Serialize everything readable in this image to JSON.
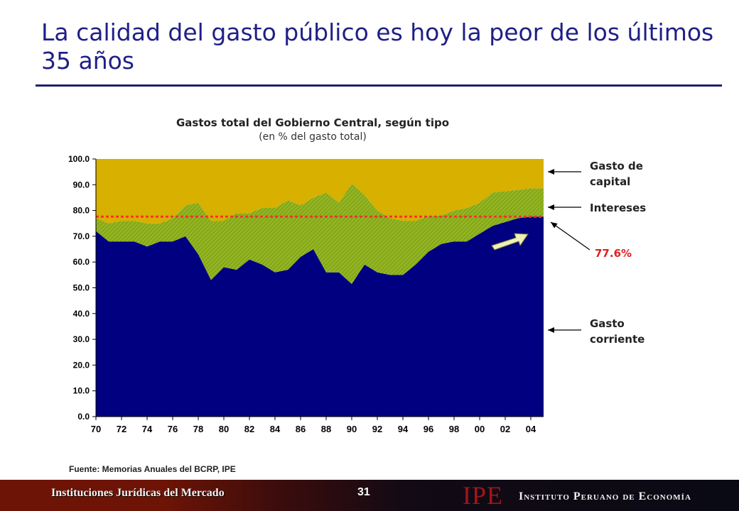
{
  "slide": {
    "title": "La calidad del gasto público es hoy la peor de los últimos 35 años"
  },
  "chart_data": {
    "type": "area",
    "title": "Gastos total del Gobierno Central, según tipo",
    "subtitle": "(en % del gasto total)",
    "x": [
      1970,
      1971,
      1972,
      1973,
      1974,
      1975,
      1976,
      1977,
      1978,
      1979,
      1980,
      1981,
      1982,
      1983,
      1984,
      1985,
      1986,
      1987,
      1988,
      1989,
      1990,
      1991,
      1992,
      1993,
      1994,
      1995,
      1996,
      1997,
      1998,
      1999,
      2000,
      2001,
      2002,
      2003,
      2004,
      2005
    ],
    "x_tick_labels": [
      "70",
      "72",
      "74",
      "76",
      "78",
      "80",
      "82",
      "84",
      "86",
      "88",
      "90",
      "92",
      "94",
      "96",
      "98",
      "00",
      "02",
      "04"
    ],
    "y_tick_labels": [
      "0.0",
      "10.0",
      "20.0",
      "30.0",
      "40.0",
      "50.0",
      "60.0",
      "70.0",
      "80.0",
      "90.0",
      "100.0"
    ],
    "ylim": [
      0,
      100
    ],
    "stacked": true,
    "series": [
      {
        "name": "Gasto corriente",
        "color": "#000080",
        "values": [
          72,
          68,
          68,
          68,
          66,
          68,
          68,
          70,
          63,
          53,
          58,
          57,
          61,
          59,
          56,
          57,
          62,
          65,
          56,
          56,
          51.5,
          59,
          56,
          55,
          55,
          59,
          64,
          67,
          68,
          68,
          71,
          74,
          75.5,
          77,
          77.6,
          77.6
        ]
      },
      {
        "name": "Intereses",
        "color": "#93b522",
        "values": [
          5,
          7,
          8,
          8,
          9,
          7,
          9,
          12,
          20,
          23,
          18,
          22,
          18,
          22,
          25,
          27,
          20,
          20,
          31,
          27,
          39,
          27,
          24,
          22,
          21,
          17,
          14,
          11,
          12,
          13,
          12,
          13,
          12,
          11,
          11,
          11
        ]
      },
      {
        "name": "Gasto de capital",
        "color": "#d8b000",
        "values": [
          23,
          25,
          24,
          24,
          25,
          25,
          23,
          18,
          17,
          24,
          24,
          21,
          21,
          19,
          19,
          16,
          18,
          15,
          13,
          17,
          9.5,
          14,
          20,
          23,
          24,
          24,
          22,
          22,
          20,
          19,
          17,
          13,
          12.5,
          12,
          11.4,
          11.4
        ]
      }
    ],
    "reference_line": {
      "value": 77.6,
      "label": "77.6%",
      "color": "#ff3030"
    },
    "side_labels": {
      "capital": "Gasto de capital",
      "interest": "Intereses",
      "current": "Gasto corriente"
    },
    "source": "Fuente: Memorias Anuales del BCRP, IPE"
  },
  "footer": {
    "left_text": "Instituciones Jurídicas del Mercado",
    "page_number": "31",
    "logo": "IPE",
    "institute": "Instituto Peruano de Economía"
  }
}
